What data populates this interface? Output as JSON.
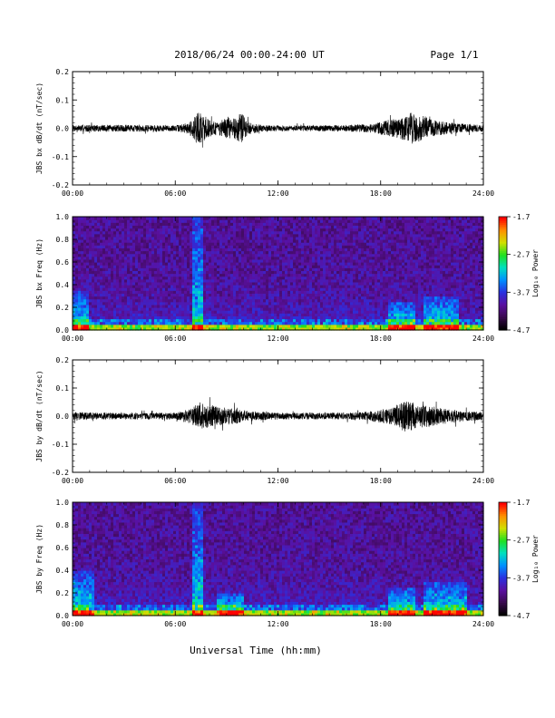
{
  "header": {
    "title": "2018/06/24  00:00-24:00 UT",
    "page": "Page 1/1"
  },
  "xlabel": "Universal Time (hh:mm)",
  "colors": {
    "trace": "#000000",
    "colormap": [
      "#000000",
      "#3a0a4e",
      "#5a10a0",
      "#2a30e0",
      "#0090ff",
      "#00e0c0",
      "#20e020",
      "#d0e000",
      "#ff9000",
      "#ff0000"
    ]
  },
  "chart_data": [
    {
      "type": "line",
      "id": "bx-time",
      "ylabel": "JBS bx dB/dt (nT/sec)",
      "xlim": [
        0,
        24
      ],
      "ylim": [
        -0.2,
        0.2
      ],
      "xticks": [
        "00:00",
        "06:00",
        "12:00",
        "18:00",
        "24:00"
      ],
      "yticks": [
        "0.2",
        "0.1",
        "0.0",
        "-0.1",
        "-0.2"
      ],
      "series": [
        {
          "x": [
            0,
            2,
            4,
            6,
            6.8,
            7.2,
            7.4,
            7.6,
            8,
            8.5,
            9,
            9.5,
            9.9,
            10.2,
            11,
            12,
            14,
            16,
            17.5,
            18.5,
            19,
            19.5,
            19.8,
            20.1,
            20.5,
            21,
            22,
            23,
            24
          ],
          "amplitude": [
            0.012,
            0.012,
            0.012,
            0.01,
            0.02,
            0.05,
            0.065,
            0.05,
            0.03,
            0.025,
            0.035,
            0.04,
            0.055,
            0.025,
            0.012,
            0.01,
            0.01,
            0.012,
            0.015,
            0.03,
            0.035,
            0.045,
            0.06,
            0.055,
            0.045,
            0.03,
            0.02,
            0.015,
            0.012
          ]
        }
      ]
    },
    {
      "type": "heatmap",
      "id": "bx-spec",
      "ylabel": "JBS bx Freq (Hz)",
      "xlim": [
        0,
        24
      ],
      "ylim": [
        0.0,
        1.0
      ],
      "xticks": [
        "00:00",
        "06:00",
        "12:00",
        "18:00",
        "24:00"
      ],
      "yticks": [
        "1.0",
        "0.8",
        "0.6",
        "0.4",
        "0.2",
        "0.0"
      ],
      "colorbar": {
        "label": "Log₁₀ Power",
        "range": [
          -4.7,
          -1.7
        ],
        "ticks": [
          "-1.7",
          "-2.7",
          "-3.7",
          "-4.7"
        ]
      },
      "enhancements": [
        {
          "t": [
            0,
            1
          ],
          "fmax": 0.35
        },
        {
          "t": [
            7,
            7.6
          ],
          "fmax": 1.0
        },
        {
          "t": [
            18.5,
            20
          ],
          "fmax": 0.25
        },
        {
          "t": [
            20.5,
            22.5
          ],
          "fmax": 0.3
        }
      ]
    },
    {
      "type": "line",
      "id": "by-time",
      "ylabel": "JBS by dB/dt (nT/sec)",
      "xlim": [
        0,
        24
      ],
      "ylim": [
        -0.2,
        0.2
      ],
      "xticks": [
        "00:00",
        "06:00",
        "12:00",
        "18:00",
        "24:00"
      ],
      "yticks": [
        "0.2",
        "0.1",
        "0.0",
        "-0.1",
        "-0.2"
      ],
      "series": [
        {
          "x": [
            0,
            2,
            4,
            6,
            6.8,
            7.2,
            7.5,
            8,
            8.5,
            9,
            9.5,
            10,
            11,
            12,
            14,
            16,
            17.5,
            18.5,
            19,
            19.5,
            20,
            20.5,
            21,
            22,
            23,
            24
          ],
          "amplitude": [
            0.015,
            0.012,
            0.012,
            0.012,
            0.025,
            0.04,
            0.045,
            0.04,
            0.035,
            0.03,
            0.03,
            0.02,
            0.015,
            0.012,
            0.012,
            0.012,
            0.018,
            0.03,
            0.04,
            0.06,
            0.045,
            0.04,
            0.035,
            0.025,
            0.018,
            0.015
          ]
        }
      ]
    },
    {
      "type": "heatmap",
      "id": "by-spec",
      "ylabel": "JBS by Freq (Hz)",
      "xlim": [
        0,
        24
      ],
      "ylim": [
        0.0,
        1.0
      ],
      "xticks": [
        "00:00",
        "06:00",
        "12:00",
        "18:00",
        "24:00"
      ],
      "yticks": [
        "1.0",
        "0.8",
        "0.6",
        "0.4",
        "0.2",
        "0.0"
      ],
      "colorbar": {
        "label": "Log₁₀ Power",
        "range": [
          -4.7,
          -1.7
        ],
        "ticks": [
          "-1.7",
          "-2.7",
          "-3.7",
          "-4.7"
        ]
      },
      "enhancements": [
        {
          "t": [
            0,
            1.2
          ],
          "fmax": 0.4
        },
        {
          "t": [
            7,
            7.6
          ],
          "fmax": 1.0
        },
        {
          "t": [
            8.5,
            10
          ],
          "fmax": 0.2
        },
        {
          "t": [
            18.5,
            20
          ],
          "fmax": 0.25
        },
        {
          "t": [
            20.5,
            23
          ],
          "fmax": 0.3
        }
      ]
    }
  ]
}
